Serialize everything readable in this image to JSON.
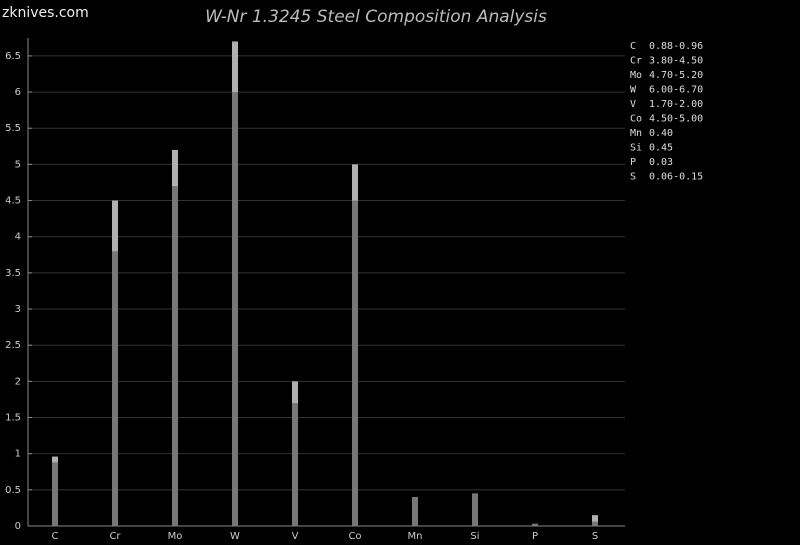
{
  "watermark": "zknives.com",
  "chart_data": {
    "type": "bar",
    "title": "W-Nr 1.3245 Steel Composition Analysis",
    "categories": [
      "C",
      "Cr",
      "Mo",
      "W",
      "V",
      "Co",
      "Mn",
      "Si",
      "P",
      "S"
    ],
    "series": [
      {
        "color": "#777777",
        "values": [
          0.88,
          3.8,
          4.7,
          6.0,
          1.7,
          4.5,
          0.4,
          0.45,
          0.03,
          0.06
        ]
      },
      {
        "color": "#b0b0b0",
        "values": [
          0.96,
          4.5,
          5.2,
          6.7,
          2.0,
          5.0,
          0.4,
          0.45,
          0.03,
          0.15
        ],
        "value_labels": [
          "0.88-0.96",
          "3.80-4.50",
          "4.70-5.20",
          "6.00-6.70",
          "1.70-2.00",
          "4.50-5.00",
          "0.40",
          "0.45",
          "0.03",
          "0.06-0.15"
        ]
      }
    ],
    "ylim": [
      0,
      6.72
    ],
    "yticks": [
      0,
      0.5,
      1,
      1.5,
      2,
      2.5,
      3,
      3.5,
      4,
      4.5,
      5,
      5.5,
      6,
      6.5
    ],
    "grid": true
  }
}
